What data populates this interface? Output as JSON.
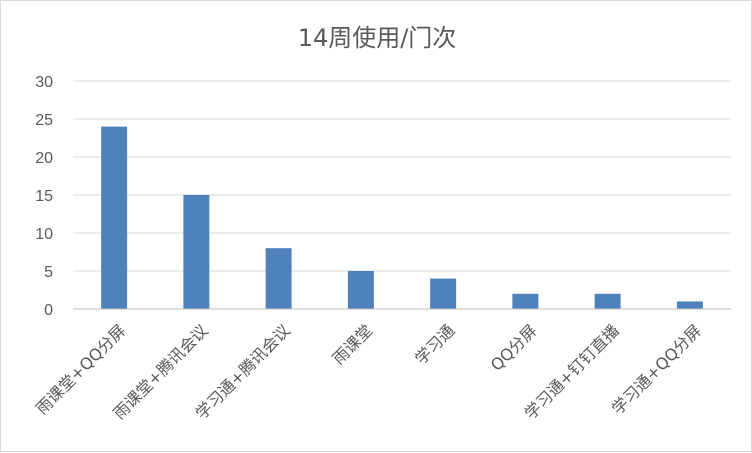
{
  "chart_data": {
    "type": "bar",
    "title": "14周使用/门次",
    "xlabel": "",
    "ylabel": "",
    "categories": [
      "雨课堂+QQ分屏",
      "雨课堂+腾讯会议",
      "学习通+腾讯会议",
      "雨课堂",
      "学习通",
      "QQ分屏",
      "学习通+钉钉直播",
      "学习通+QQ分屏"
    ],
    "values": [
      24,
      15,
      8,
      5,
      4,
      2,
      2,
      1
    ],
    "ylim": [
      0,
      30
    ],
    "yticks": [
      0,
      5,
      10,
      15,
      20,
      25,
      30
    ],
    "grid": true,
    "legend": "none",
    "bar_color": "#4f81bd"
  }
}
